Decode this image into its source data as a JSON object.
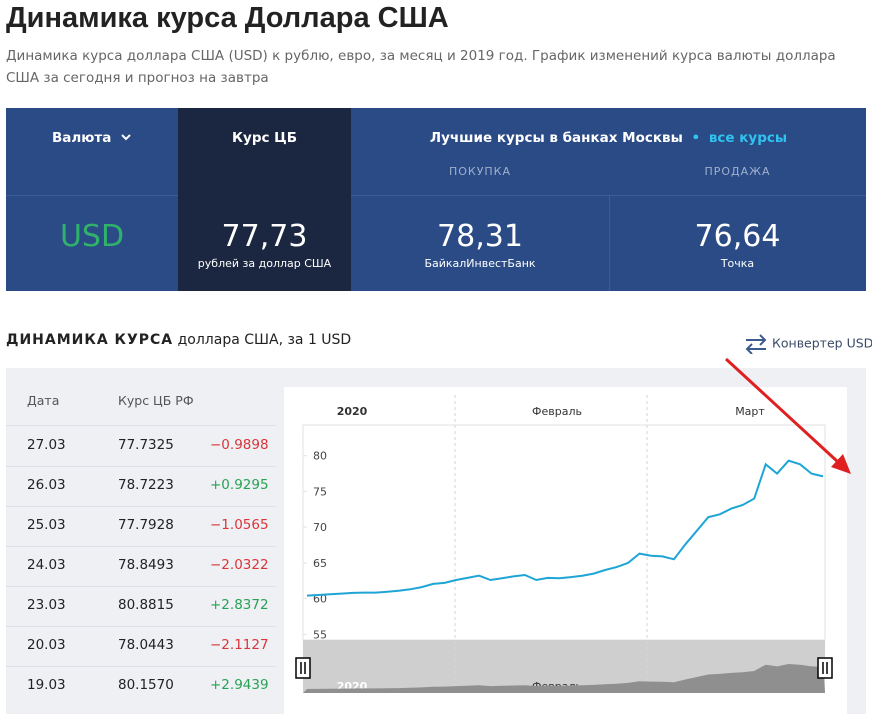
{
  "header": {
    "title": "Динамика курса Доллара США",
    "subtitle": "Динамика курса доллара США (USD) к рублю, евро, за месяц и 2019 год. График изменений курса валюты доллара США за сегодня и прогноз на завтра"
  },
  "rates": {
    "currency_label": "Валюта",
    "cb_label": "Курс ЦБ",
    "banks_label": "Лучшие курсы в банках Москвы",
    "all_link": "все курсы",
    "buy_label": "ПОКУПКА",
    "sell_label": "ПРОДАЖА",
    "currency": "USD",
    "cb_rate": "77,73",
    "cb_note": "рублей за доллар США",
    "buy_rate": "78,31",
    "buy_bank": "БайкалИнвестБанк",
    "sell_rate": "76,64",
    "sell_bank": "Точка"
  },
  "section": {
    "title_bold": "ДИНАМИКА КУРСА",
    "title_rest": "доллара США, за 1 USD",
    "converter": "Конвертер USD"
  },
  "table": {
    "headers": [
      "Дата",
      "Курс ЦБ РФ"
    ],
    "rows": [
      [
        "27.03",
        "77.7325",
        "−0.9898"
      ],
      [
        "26.03",
        "78.7223",
        "+0.9295"
      ],
      [
        "25.03",
        "77.7928",
        "−1.0565"
      ],
      [
        "24.03",
        "78.8493",
        "−2.0322"
      ],
      [
        "23.03",
        "80.8815",
        "+2.8372"
      ],
      [
        "20.03",
        "78.0443",
        "−2.1127"
      ],
      [
        "19.03",
        "80.1570",
        "+2.9439"
      ]
    ]
  },
  "chart_data": {
    "type": "line",
    "period_labels": [
      "2020",
      "Февраль",
      "Март"
    ],
    "color": "#1ea5d6",
    "values": [
      60.42,
      60.5,
      60.6,
      60.7,
      60.8,
      60.84,
      60.84,
      60.95,
      61.1,
      61.3,
      61.6,
      62.05,
      62.2,
      62.6,
      62.9,
      63.2,
      62.6,
      62.85,
      63.1,
      63.3,
      62.6,
      62.9,
      62.85,
      63.0,
      63.2,
      63.5,
      64.0,
      64.4,
      65.0,
      66.3,
      66.0,
      65.9,
      65.5,
      67.6,
      69.5,
      71.4,
      71.8,
      72.6,
      73.1,
      74.0,
      78.8,
      77.5,
      79.3,
      78.8,
      77.5,
      77.1
    ],
    "ylim": [
      54.2,
      84.3
    ],
    "yticks": [
      55,
      60,
      65,
      70,
      75,
      80
    ]
  }
}
